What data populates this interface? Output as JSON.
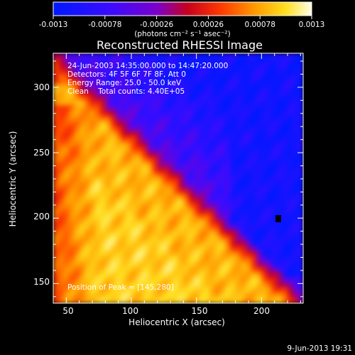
{
  "chart_data": {
    "type": "heatmap",
    "title": "Reconstructed RHESSI Image",
    "xlabel": "Heliocentric X (arcsec)",
    "ylabel": "Heliocentric Y (arcsec)",
    "xlim": [
      40,
      232
    ],
    "ylim": [
      135,
      326
    ],
    "x_ticks": [
      50,
      100,
      150,
      200
    ],
    "y_ticks": [
      150,
      200,
      250,
      300
    ],
    "colorbar": {
      "range": [
        -0.0013,
        0.0013
      ],
      "tick_labels": [
        "-0.0013",
        "-0.00078",
        "-0.00026",
        "0.00026",
        "0.00078",
        "0.0013"
      ],
      "unit_label": "(photons cm⁻² s⁻¹ asec⁻²)"
    },
    "annotations": {
      "time_range": "24-Jun-2003 14:35:00.000 to 14:47:20.000",
      "detectors": "Detectors: 4F 5F 6F 7F 8F, Att 0",
      "energy": "Energy Range: 25.0 - 50.0 keV",
      "clean": "Clean    Total counts: 4.40E+05",
      "peak": "Position of Peak = [145,280]"
    },
    "peak_position": [
      145,
      280
    ],
    "footer_date": "9-Jun-2013 19:31",
    "colors": {
      "colorbar_stops": [
        "#0018ff",
        "#7a00cc",
        "#c8001e",
        "#ff6a00",
        "#ffe020",
        "#ffffe8"
      ],
      "background": "#000000"
    }
  }
}
